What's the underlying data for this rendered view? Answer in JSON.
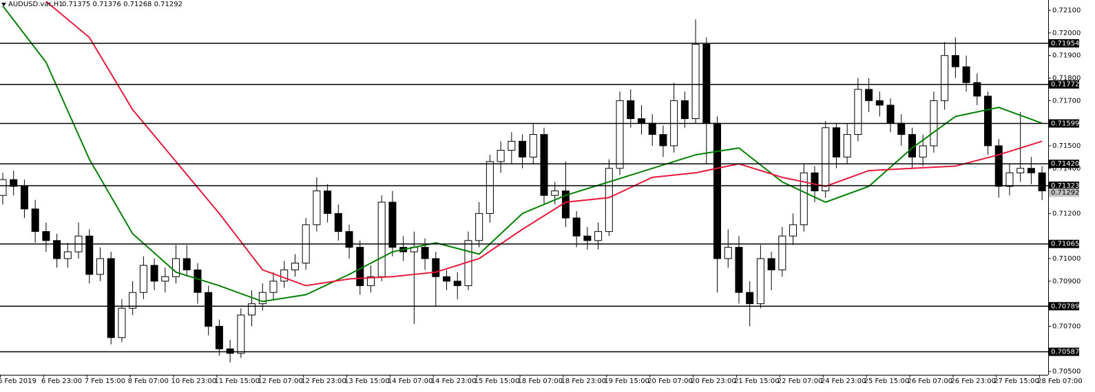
{
  "chart_data": {
    "type": "candlestick",
    "title": "AUDUSD.var,H1",
    "info": "0.71375 0.71376 0.71268 0.71292",
    "categories": [
      "6 Feb 2019",
      null,
      null,
      null,
      "6 Feb 23:00",
      null,
      null,
      null,
      "7 Feb 15:00",
      null,
      null,
      null,
      "8 Feb 07:00",
      null,
      null,
      null,
      "10 Feb 23:00",
      null,
      null,
      null,
      "11 Feb 15:00",
      null,
      null,
      null,
      "12 Feb 07:00",
      null,
      null,
      null,
      "12 Feb 23:00",
      null,
      null,
      null,
      "13 Feb 15:00",
      null,
      null,
      null,
      "14 Feb 07:00",
      null,
      null,
      null,
      "14 Feb 23:00",
      null,
      null,
      null,
      "15 Feb 15:00",
      null,
      null,
      null,
      "18 Feb 07:00",
      null,
      null,
      null,
      "18 Feb 23:00",
      null,
      null,
      null,
      "19 Feb 15:00",
      null,
      null,
      null,
      "20 Feb 07:00",
      null,
      null,
      null,
      "20 Feb 23:00",
      null,
      null,
      null,
      "21 Feb 15:00",
      null,
      null,
      null,
      "22 Feb 07:00",
      null,
      null,
      null,
      "24 Feb 23:00",
      null,
      null,
      null,
      "25 Feb 15:00",
      null,
      null,
      null,
      "26 Feb 07:00",
      null,
      null,
      null,
      "26 Feb 23:00",
      null,
      null,
      null,
      "27 Feb 15:00",
      null,
      null,
      null,
      "28 Feb 07:00"
    ],
    "open": [
      0.7128,
      0.7135,
      0.7132,
      0.7122,
      0.7112,
      0.7108,
      0.71,
      0.7103,
      0.711,
      0.7093,
      0.71,
      0.7065,
      0.7078,
      0.7085,
      0.7097,
      0.709,
      0.7092,
      0.71,
      0.7095,
      0.7085,
      0.707,
      0.706,
      0.7058,
      0.7075,
      0.708,
      0.7085,
      0.709,
      0.7095,
      0.7098,
      0.7115,
      0.713,
      0.712,
      0.7112,
      0.7105,
      0.7088,
      0.7092,
      0.7125,
      0.7105,
      0.7103,
      0.7105,
      0.71,
      0.7092,
      0.709,
      0.7088,
      0.7108,
      0.712,
      0.7143,
      0.7148,
      0.7152,
      0.7145,
      0.7155,
      0.7128,
      0.713,
      0.7118,
      0.711,
      0.7108,
      0.7112,
      0.714,
      0.717,
      0.7162,
      0.716,
      0.7155,
      0.715,
      0.717,
      0.7162,
      0.7195,
      0.716,
      0.71,
      0.7105,
      0.7085,
      0.708,
      0.71,
      0.7095,
      0.711,
      0.7115,
      0.7138,
      0.713,
      0.7158,
      0.7145,
      0.7155,
      0.7175,
      0.717,
      0.7168,
      0.716,
      0.7155,
      0.7145,
      0.715,
      0.717,
      0.719,
      0.7185,
      0.7178,
      0.7172,
      0.715,
      0.7132,
      0.7138,
      0.714,
      0.7138
    ],
    "high": [
      0.7138,
      0.7139,
      0.7135,
      0.7126,
      0.7116,
      0.7111,
      0.7107,
      0.7116,
      0.7113,
      0.7105,
      0.7103,
      0.7082,
      0.709,
      0.7101,
      0.71,
      0.7096,
      0.7106,
      0.7106,
      0.7098,
      0.7088,
      0.7073,
      0.7064,
      0.7078,
      0.7086,
      0.7089,
      0.7094,
      0.7099,
      0.7102,
      0.7118,
      0.7136,
      0.7133,
      0.7124,
      0.7115,
      0.7108,
      0.7097,
      0.7128,
      0.713,
      0.711,
      0.7112,
      0.7109,
      0.7103,
      0.7095,
      0.7094,
      0.7112,
      0.7125,
      0.7146,
      0.7152,
      0.7156,
      0.7155,
      0.716,
      0.7158,
      0.7134,
      0.7143,
      0.7121,
      0.7114,
      0.7116,
      0.7144,
      0.7174,
      0.7175,
      0.7168,
      0.7164,
      0.7159,
      0.7178,
      0.7174,
      0.7206,
      0.7198,
      0.7163,
      0.7113,
      0.711,
      0.709,
      0.7106,
      0.7103,
      0.7114,
      0.712,
      0.7142,
      0.7141,
      0.7161,
      0.716,
      0.716,
      0.718,
      0.718,
      0.7174,
      0.7171,
      0.7164,
      0.7158,
      0.7155,
      0.7174,
      0.7196,
      0.7198,
      0.719,
      0.7182,
      0.7174,
      0.7153,
      0.7142,
      0.7165,
      0.7145,
      0.7141
    ],
    "low": [
      0.7124,
      0.7128,
      0.7118,
      0.7107,
      0.7103,
      0.7096,
      0.7096,
      0.71,
      0.7089,
      0.709,
      0.7062,
      0.7063,
      0.7075,
      0.7082,
      0.7086,
      0.7085,
      0.7089,
      0.7092,
      0.708,
      0.7066,
      0.7057,
      0.7054,
      0.7056,
      0.707,
      0.7077,
      0.7082,
      0.7087,
      0.7092,
      0.7095,
      0.7112,
      0.7116,
      0.7108,
      0.71,
      0.7084,
      0.7085,
      0.709,
      0.7101,
      0.7099,
      0.7071,
      0.7095,
      0.7079,
      0.7086,
      0.7082,
      0.7086,
      0.7105,
      0.7116,
      0.7138,
      0.7142,
      0.714,
      0.7142,
      0.7124,
      0.7124,
      0.7114,
      0.7105,
      0.7104,
      0.7104,
      0.711,
      0.7137,
      0.7158,
      0.7155,
      0.715,
      0.7145,
      0.7147,
      0.7158,
      0.716,
      0.7142,
      0.7085,
      0.7096,
      0.708,
      0.707,
      0.7078,
      0.7086,
      0.7092,
      0.7106,
      0.7112,
      0.7125,
      0.7127,
      0.714,
      0.7142,
      0.7152,
      0.7165,
      0.7163,
      0.7156,
      0.715,
      0.714,
      0.7141,
      0.7147,
      0.7166,
      0.718,
      0.7174,
      0.7168,
      0.7146,
      0.7127,
      0.7128,
      0.7134,
      0.7133,
      0.7126
    ],
    "close": [
      0.7135,
      0.7132,
      0.7122,
      0.7112,
      0.7108,
      0.71,
      0.7103,
      0.711,
      0.7093,
      0.71,
      0.7065,
      0.7078,
      0.7085,
      0.7097,
      0.709,
      0.7092,
      0.71,
      0.7095,
      0.7085,
      0.707,
      0.706,
      0.7058,
      0.7075,
      0.708,
      0.7085,
      0.709,
      0.7095,
      0.7098,
      0.7115,
      0.713,
      0.712,
      0.7112,
      0.7105,
      0.7088,
      0.7092,
      0.7125,
      0.7105,
      0.7103,
      0.7105,
      0.71,
      0.7092,
      0.709,
      0.7088,
      0.7108,
      0.712,
      0.7143,
      0.7148,
      0.7152,
      0.7145,
      0.7155,
      0.7128,
      0.713,
      0.7118,
      0.711,
      0.7108,
      0.7112,
      0.714,
      0.717,
      0.7162,
      0.716,
      0.7155,
      0.715,
      0.717,
      0.7162,
      0.7195,
      0.716,
      0.71,
      0.7105,
      0.7085,
      0.708,
      0.71,
      0.7095,
      0.711,
      0.7115,
      0.7138,
      0.713,
      0.7158,
      0.7145,
      0.7155,
      0.7175,
      0.717,
      0.7168,
      0.716,
      0.7155,
      0.7145,
      0.715,
      0.717,
      0.719,
      0.7185,
      0.7178,
      0.7172,
      0.715,
      0.7132,
      0.7138,
      0.714,
      0.7138,
      0.713
    ],
    "bull_color": "#ffffff",
    "bear_color": "#000000",
    "series": [
      {
        "color": "#008000",
        "x": [
          0,
          4,
          8,
          12,
          16,
          20,
          24,
          28,
          32,
          36,
          40,
          44,
          48,
          52,
          56,
          60,
          64,
          68,
          72,
          76,
          80,
          84,
          88,
          92,
          96
        ],
        "values": [
          0.7212,
          0.7187,
          0.7144,
          0.7111,
          0.7094,
          0.7088,
          0.7081,
          0.7084,
          0.7093,
          0.7103,
          0.7107,
          0.7102,
          0.712,
          0.7128,
          0.7134,
          0.714,
          0.7146,
          0.7149,
          0.7134,
          0.7125,
          0.7132,
          0.7149,
          0.7163,
          0.7167,
          0.716
        ]
      },
      {
        "color": "#e8173a",
        "x": [
          4,
          8,
          12,
          16,
          20,
          24,
          28,
          32,
          36,
          40,
          44,
          48,
          52,
          56,
          60,
          64,
          68,
          72,
          76,
          80,
          84,
          88,
          92,
          96
        ],
        "values": [
          0.7214,
          0.7198,
          0.7166,
          0.7143,
          0.712,
          0.7095,
          0.7088,
          0.7091,
          0.7092,
          0.7094,
          0.71,
          0.7113,
          0.7125,
          0.7127,
          0.7136,
          0.7138,
          0.7142,
          0.7136,
          0.7132,
          0.7139,
          0.714,
          0.7141,
          0.7146,
          0.7152
        ]
      }
    ],
    "ylim": [
      0.70485,
      0.72146
    ],
    "yticks": [
      {
        "value": 0.721,
        "label": "0.72100"
      },
      {
        "value": 0.72,
        "label": "0.72000"
      },
      {
        "value": 0.719,
        "label": "0.71900"
      },
      {
        "value": 0.718,
        "label": "0.71800"
      },
      {
        "value": 0.717,
        "label": "0.71700"
      },
      {
        "value": 0.715,
        "label": "0.71500"
      },
      {
        "value": 0.714,
        "label": "0.71400"
      },
      {
        "value": 0.712,
        "label": "0.71200"
      },
      {
        "value": 0.71,
        "label": "0.71000"
      },
      {
        "value": 0.709,
        "label": "0.70900"
      },
      {
        "value": 0.707,
        "label": "0.70700"
      },
      {
        "value": 0.705,
        "label": "0.70500"
      }
    ],
    "levels": [
      {
        "value": 0.71954,
        "label": "0.71954"
      },
      {
        "value": 0.71772,
        "label": "0.71772"
      },
      {
        "value": 0.71599,
        "label": "0.71599"
      },
      {
        "value": 0.7142,
        "label": "0.71420"
      },
      {
        "value": 0.71323,
        "label": "0.71323"
      },
      {
        "value": 0.71065,
        "label": "0.71065"
      },
      {
        "value": 0.70789,
        "label": "0.70789"
      },
      {
        "value": 0.70587,
        "label": "0.70587"
      }
    ],
    "price": {
      "value": 0.71292,
      "label": "0.71292"
    }
  }
}
